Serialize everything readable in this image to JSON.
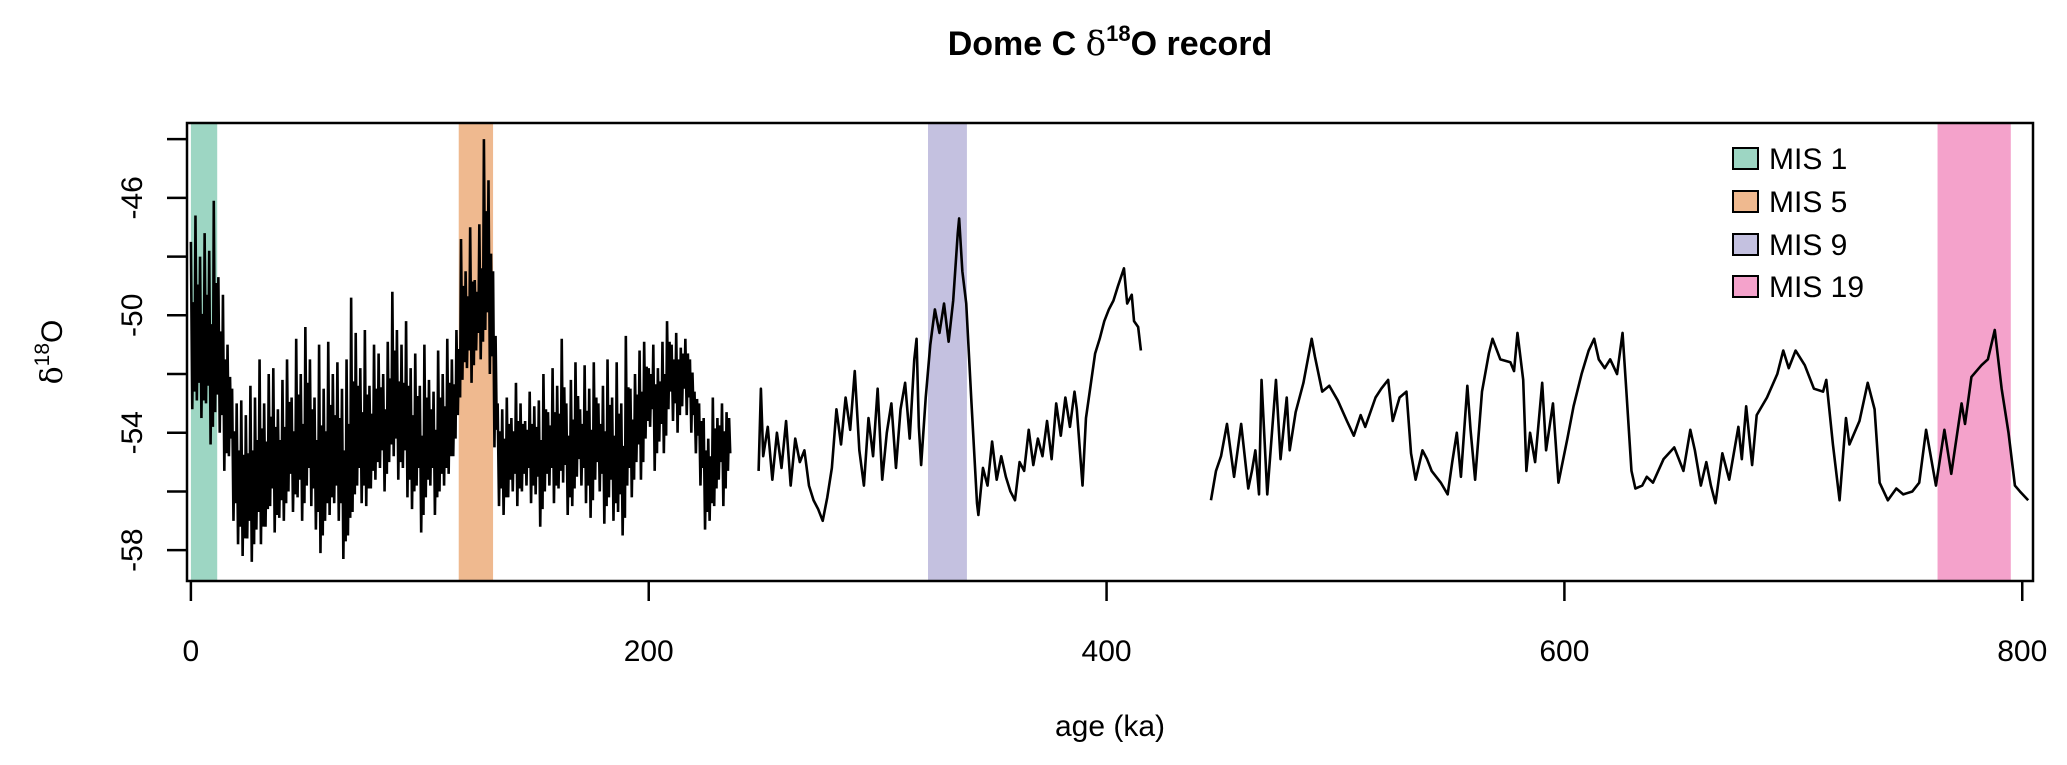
{
  "chart_data": {
    "type": "line",
    "title_parts": {
      "prefix": "Dome C ",
      "delta": "δ",
      "sup": "18",
      "suffix": "O record"
    },
    "xlabel": "age (ka)",
    "ylabel_parts": {
      "delta": "δ",
      "sup": "18",
      "suffix": "O"
    },
    "xlim": [
      -1.7,
      804.7
    ],
    "ylim": [
      -59.05,
      -43.45
    ],
    "x_ticks": [
      0,
      200,
      400,
      600,
      800
    ],
    "x_tick_labels": [
      "0",
      "200",
      "400",
      "600",
      "800"
    ],
    "y_ticks": [
      -44,
      -46,
      -48,
      -50,
      -52,
      -54,
      -56,
      -58
    ],
    "y_tick_labels": [
      {
        "value": -46,
        "label": "-46"
      },
      {
        "value": -50,
        "label": "-50"
      },
      {
        "value": -54,
        "label": "-54"
      },
      {
        "value": -58,
        "label": "-58"
      }
    ],
    "grid": false,
    "legend_position": "top-right",
    "bands": [
      {
        "label": "MIS 1",
        "from": 0,
        "to": 11.5,
        "color": "#9dd6c3"
      },
      {
        "label": "MIS 5",
        "from": 117,
        "to": 132,
        "color": "#efb98f"
      },
      {
        "label": "MIS 9",
        "from": 322,
        "to": 339,
        "color": "#c4c1e0"
      },
      {
        "label": "MIS 19",
        "from": 763,
        "to": 795,
        "color": "#f4a2cb"
      }
    ],
    "line_color": "#000000",
    "segment_envelope": {
      "note_age_step": 2,
      "age": [
        0,
        2,
        4,
        6,
        8,
        10,
        12,
        14,
        16,
        18,
        20,
        22,
        24,
        26,
        28,
        30,
        32,
        34,
        36,
        38,
        40,
        42,
        44,
        46,
        48,
        50,
        52,
        54,
        56,
        58,
        60,
        62,
        64,
        66,
        68,
        70,
        72,
        74,
        76,
        78,
        80,
        82,
        84,
        86,
        88,
        90,
        92,
        94,
        96,
        98,
        100,
        102,
        104,
        106,
        108,
        110,
        112,
        114,
        116,
        118,
        120,
        122,
        124,
        126,
        128,
        130,
        132,
        134,
        136,
        138,
        140,
        142,
        144,
        146,
        148,
        150,
        152,
        154,
        156,
        158,
        160,
        162,
        164,
        166,
        168,
        170,
        172,
        174,
        176,
        178,
        180,
        182,
        184,
        186,
        188,
        190,
        192,
        194,
        196,
        198,
        200,
        202,
        204,
        206,
        208,
        210,
        212,
        214,
        216,
        218,
        220,
        222,
        224,
        226,
        228,
        230,
        232,
        234
      ],
      "upper": [
        -47.5,
        -46.6,
        -48.0,
        -47.2,
        -47.8,
        -46.1,
        -48.7,
        -49.3,
        -51.0,
        -52.5,
        -53.0,
        -52.9,
        -53.4,
        -52.4,
        -52.8,
        -51.5,
        -53.0,
        -52.0,
        -51.8,
        -53.2,
        -52.2,
        -51.5,
        -52.8,
        -50.8,
        -52.0,
        -50.4,
        -51.5,
        -52.8,
        -51.0,
        -52.5,
        -50.9,
        -52.0,
        -51.6,
        -52.5,
        -51.5,
        -49.4,
        -50.6,
        -51.8,
        -50.5,
        -52.4,
        -51.0,
        -51.3,
        -52.0,
        -50.9,
        -49.2,
        -50.5,
        -51.0,
        -50.2,
        -51.8,
        -51.3,
        -52.4,
        -51.0,
        -52.2,
        -52.6,
        -51.2,
        -52.0,
        -50.8,
        -51.5,
        -50.5,
        -47.4,
        -48.5,
        -47.0,
        -48.8,
        -46.9,
        -44.0,
        -45.4,
        -48.5,
        -53.0,
        -53.2,
        -52.8,
        -53.5,
        -52.3,
        -53.0,
        -53.6,
        -52.6,
        -53.1,
        -52.9,
        -52.0,
        -53.3,
        -51.8,
        -52.4,
        -50.8,
        -53.0,
        -52.2,
        -51.6,
        -53.2,
        -51.7,
        -52.5,
        -51.6,
        -53.0,
        -52.4,
        -51.5,
        -52.8,
        -51.6,
        -53.0,
        -50.7,
        -52.5,
        -52.0,
        -51.2,
        -50.9,
        -51.8,
        -51.0,
        -51.8,
        -50.9,
        -50.2,
        -51.0,
        -50.6,
        -51.1,
        -50.8,
        -51.5,
        -52.6,
        -53.0,
        -53.5,
        -54.2,
        -52.8,
        -53.5,
        -53.0,
        -53.3
      ],
      "lower": [
        -53.2,
        -52.9,
        -53.5,
        -53.0,
        -54.4,
        -53.3,
        -54.0,
        -55.3,
        -54.8,
        -57.0,
        -57.8,
        -58.2,
        -57.6,
        -58.4,
        -57.3,
        -57.8,
        -57.2,
        -56.5,
        -57.4,
        -56.9,
        -57.0,
        -56.0,
        -56.7,
        -56.2,
        -57.0,
        -55.8,
        -56.5,
        -57.3,
        -58.1,
        -57.0,
        -56.8,
        -56.4,
        -57.0,
        -58.3,
        -57.5,
        -56.7,
        -55.8,
        -56.4,
        -56.5,
        -55.9,
        -55.6,
        -55.2,
        -56.0,
        -55.0,
        -54.8,
        -55.6,
        -55.2,
        -56.2,
        -56.6,
        -55.8,
        -57.4,
        -56.2,
        -55.8,
        -56.8,
        -56.0,
        -55.8,
        -55.4,
        -54.8,
        -53.4,
        -52.2,
        -51.8,
        -52.3,
        -51.2,
        -51.5,
        -50.5,
        -52.0,
        -54.5,
        -56.5,
        -56.8,
        -56.2,
        -56.0,
        -56.5,
        -56.0,
        -55.8,
        -56.4,
        -56.1,
        -57.2,
        -56.0,
        -55.8,
        -56.4,
        -55.9,
        -55.7,
        -56.8,
        -56.5,
        -55.5,
        -55.8,
        -56.4,
        -56.9,
        -55.6,
        -56.0,
        -57.1,
        -56.2,
        -57.0,
        -56.7,
        -57.5,
        -55.8,
        -56.2,
        -55.0,
        -55.6,
        -54.2,
        -53.8,
        -55.3,
        -54.3,
        -54.7,
        -53.2,
        -53.6,
        -54.0,
        -53.1,
        -53.4,
        -54.0,
        -54.7,
        -55.8,
        -57.3,
        -57.0,
        -56.5,
        -55.6,
        -56.5,
        -55.3
      ]
    },
    "segments": [
      {
        "age": [
          248,
          249,
          250,
          252,
          254,
          256,
          258,
          260,
          262,
          264,
          266,
          268,
          270,
          272,
          274,
          276,
          278,
          280,
          282,
          284,
          286,
          288,
          290,
          292,
          294,
          296,
          298,
          300,
          302,
          304,
          306,
          308,
          310,
          312,
          314,
          316,
          317,
          318,
          319,
          321,
          323,
          325,
          327,
          329,
          331,
          333,
          335,
          335.6,
          337,
          338.7,
          341,
          343.4,
          344,
          346,
          348,
          350,
          352,
          354,
          356,
          358,
          360,
          362,
          364,
          366,
          368,
          370,
          372,
          374,
          376,
          378,
          380,
          382,
          384,
          386,
          387,
          389.5,
          391,
          393,
          395,
          397,
          399,
          401,
          403,
          405,
          407.6,
          409,
          411,
          412,
          413.8,
          415
        ],
        "d18O": [
          -55.3,
          -52.5,
          -54.8,
          -53.8,
          -55.6,
          -54.0,
          -55.2,
          -53.6,
          -55.8,
          -54.2,
          -55.0,
          -54.6,
          -55.8,
          -56.3,
          -56.6,
          -57.0,
          -56.2,
          -55.2,
          -53.2,
          -54.4,
          -52.8,
          -53.9,
          -51.9,
          -54.6,
          -55.8,
          -53.5,
          -54.8,
          -52.5,
          -55.6,
          -54.0,
          -53.0,
          -55.2,
          -53.2,
          -52.3,
          -54.2,
          -51.5,
          -50.8,
          -53.8,
          -55.1,
          -52.8,
          -51.0,
          -49.8,
          -50.6,
          -49.6,
          -50.9,
          -49.5,
          -47.2,
          -46.7,
          -48.5,
          -49.6,
          -53.0,
          -56.4,
          -56.8,
          -55.2,
          -55.8,
          -54.3,
          -55.6,
          -54.8,
          -55.5,
          -56.0,
          -56.3,
          -55.0,
          -55.3,
          -53.9,
          -55.1,
          -54.2,
          -54.8,
          -53.6,
          -54.9,
          -53.0,
          -54.1,
          -52.8,
          -53.8,
          -52.6,
          -53.2,
          -55.8,
          -53.5,
          -52.4,
          -51.3,
          -50.8,
          -50.2,
          -49.8,
          -49.5,
          -49.0,
          -48.4,
          -49.6,
          -49.3,
          -50.2,
          -50.4,
          -51.2
        ]
      },
      {
        "age": [
          445.6,
          447.8,
          450,
          452.6,
          455.7,
          458.8,
          461.9,
          463.5,
          465,
          466.6,
          467.7,
          470.2,
          474,
          476,
          478.7,
          480,
          482.6,
          486,
          489.6,
          491,
          494.2,
          497.3,
          501,
          505,
          508,
          511,
          513,
          517.5,
          520,
          523,
          525,
          528,
          531,
          533,
          535,
          538,
          540,
          542,
          546,
          549,
          551,
          553,
          554.8,
          557.6,
          559,
          561,
          564,
          567,
          568.6,
          572,
          576.4,
          578,
          579.5,
          582,
          583.4,
          585,
          587.2,
          590.3,
          592,
          595,
          597.4,
          601.3,
          604,
          607.5,
          610.6,
          613,
          615,
          617.6,
          620,
          623,
          625.4,
          627,
          629.3,
          631,
          634,
          636,
          638.7,
          643.3,
          648,
          652,
          655,
          657,
          659.6,
          662,
          664,
          666,
          669,
          672,
          676,
          677.5,
          679.4,
          682,
          684,
          688.5,
          693,
          695.6,
          698,
          701,
          705,
          709,
          713,
          714.4,
          717.3,
          720.2,
          723,
          724.5,
          728.9,
          732.5,
          735.5,
          737.7,
          741.3,
          745,
          748,
          752,
          755,
          758,
          762.3,
          766,
          769,
          773.5,
          775,
          777.8,
          782.2,
          785,
          788,
          791,
          794,
          796.8,
          799,
          802.6
        ],
        "d18O": [
          -56.3,
          -55.3,
          -54.8,
          -53.7,
          -55.5,
          -53.7,
          -55.9,
          -55.3,
          -54.6,
          -56.1,
          -52.2,
          -56.1,
          -52.2,
          -54.9,
          -52.8,
          -54.6,
          -53.3,
          -52.3,
          -50.8,
          -51.4,
          -52.6,
          -52.4,
          -52.9,
          -53.6,
          -54.1,
          -53.4,
          -53.8,
          -52.8,
          -52.5,
          -52.2,
          -53.6,
          -52.8,
          -52.6,
          -54.7,
          -55.6,
          -54.6,
          -54.9,
          -55.3,
          -55.7,
          -56.1,
          -55.0,
          -54.0,
          -55.5,
          -52.4,
          -53.9,
          -55.6,
          -52.6,
          -51.3,
          -50.8,
          -51.5,
          -51.6,
          -51.9,
          -50.6,
          -52.2,
          -55.3,
          -54.0,
          -55.0,
          -52.3,
          -54.6,
          -53.0,
          -55.7,
          -54.2,
          -53.1,
          -52.0,
          -51.2,
          -50.8,
          -51.5,
          -51.8,
          -51.5,
          -52.0,
          -50.6,
          -52.5,
          -55.3,
          -55.9,
          -55.8,
          -55.5,
          -55.7,
          -54.9,
          -54.5,
          -55.3,
          -53.9,
          -54.6,
          -55.8,
          -55.0,
          -55.8,
          -56.4,
          -54.7,
          -55.6,
          -53.8,
          -54.9,
          -53.1,
          -55.1,
          -53.4,
          -52.8,
          -52.0,
          -51.2,
          -51.8,
          -51.2,
          -51.7,
          -52.5,
          -52.6,
          -52.2,
          -54.4,
          -56.3,
          -53.5,
          -54.4,
          -53.6,
          -52.3,
          -53.2,
          -55.7,
          -56.3,
          -55.9,
          -56.1,
          -56.0,
          -55.7,
          -53.9,
          -55.8,
          -53.9,
          -55.4,
          -53.0,
          -53.7,
          -52.1,
          -51.7,
          -51.5,
          -50.5,
          -52.5,
          -54.0,
          -55.8,
          -56.0,
          -56.3
        ]
      }
    ]
  }
}
